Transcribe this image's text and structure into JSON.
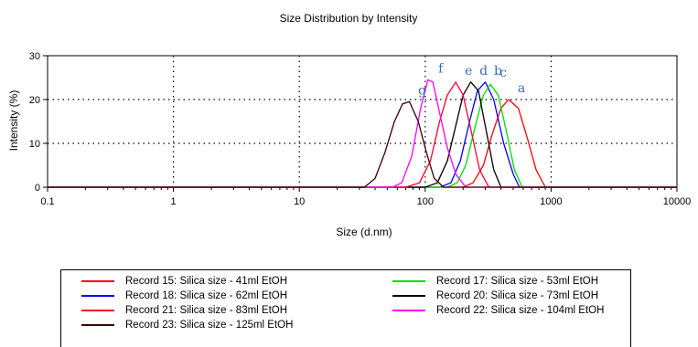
{
  "chart_data": {
    "type": "line",
    "title": "Size Distribution by Intensity",
    "xlabel": "Size (d.nm)",
    "ylabel": "Intensity (%)",
    "x_scale": "log",
    "xlim": [
      0.1,
      10000
    ],
    "ylim": [
      0,
      30
    ],
    "x_ticks": [
      0.1,
      1,
      10,
      100,
      1000,
      10000
    ],
    "x_tick_labels": [
      "0.1",
      "1",
      "10",
      "100",
      "1000",
      "10000"
    ],
    "y_ticks": [
      0,
      10,
      20,
      30
    ],
    "y_tick_labels": [
      "0",
      "10",
      "20",
      "30"
    ],
    "grid": "dotted",
    "legend": "bottom",
    "series": [
      {
        "name": "Record 15: Silica size - 41ml EtOH",
        "peak_label": "a",
        "color": "#ff0000",
        "x": [
          0.1,
          200,
          240,
          290,
          340,
          400,
          460,
          550,
          650,
          760,
          900,
          10000
        ],
        "y": [
          0,
          0,
          1,
          5,
          12,
          18,
          20,
          18,
          11,
          4,
          0,
          0
        ]
      },
      {
        "name": "Record 18: Silica size - 62ml EtOH",
        "peak_label": "b",
        "color": "#0000ff",
        "x": [
          0.1,
          130,
          160,
          190,
          225,
          260,
          300,
          350,
          420,
          500,
          560,
          10000
        ],
        "y": [
          0,
          0,
          1,
          6,
          15,
          22,
          24,
          20,
          10,
          3,
          0,
          0
        ]
      },
      {
        "name": "Record 17: Silica size - 53ml EtOH",
        "peak_label": "c",
        "color": "#00dd00",
        "x": [
          0.1,
          150,
          180,
          210,
          250,
          290,
          330,
          380,
          440,
          510,
          590,
          10000
        ],
        "y": [
          0,
          0,
          1,
          5,
          14,
          21,
          23.5,
          21,
          13,
          4,
          0,
          0
        ]
      },
      {
        "name": "Record 20: Silica size - 73ml EtOH",
        "peak_label": "d",
        "color": "#000000",
        "x": [
          0.1,
          100,
          125,
          150,
          175,
          200,
          230,
          265,
          305,
          350,
          400,
          10000
        ],
        "y": [
          0,
          0,
          1,
          6,
          14,
          21,
          24,
          22,
          13,
          4,
          0,
          0
        ]
      },
      {
        "name": "Record 21: Silica size - 83ml EtOH",
        "peak_label": "e",
        "color": "#ff0033",
        "x": [
          0.1,
          70,
          90,
          110,
          130,
          150,
          175,
          200,
          235,
          270,
          320,
          10000
        ],
        "y": [
          0,
          0,
          1,
          6,
          15,
          21,
          24,
          21,
          12,
          4,
          0,
          0
        ]
      },
      {
        "name": "Record 22: Silica size - 104ml EtOH",
        "peak_label": "f",
        "color": "#ff00ff",
        "x": [
          0.1,
          55,
          65,
          78,
          92,
          105,
          115,
          130,
          150,
          175,
          210,
          10000
        ],
        "y": [
          0,
          0,
          1,
          7,
          18,
          24.5,
          24,
          17,
          9,
          3,
          0,
          0
        ]
      },
      {
        "name": "Record 23: Silica size - 125ml EtOH",
        "peak_label": "g",
        "color": "#3a0000",
        "x": [
          0.1,
          33,
          40,
          48,
          57,
          66,
          75,
          88,
          102,
          118,
          140,
          10000
        ],
        "y": [
          0,
          0,
          2,
          8,
          15,
          19,
          19.5,
          15,
          8,
          2,
          0,
          0
        ]
      }
    ]
  },
  "legend_layout": [
    [
      "Record 15: Silica size - 41ml EtOH",
      "Record 17: Silica size - 53ml EtOH"
    ],
    [
      "Record 18: Silica size - 62ml EtOH",
      "Record 20: Silica size - 73ml EtOH"
    ],
    [
      "Record 21: Silica size - 83ml EtOH",
      "Record 22: Silica size - 104ml EtOH"
    ],
    [
      "Record 23: Silica size - 125ml EtOH"
    ]
  ]
}
